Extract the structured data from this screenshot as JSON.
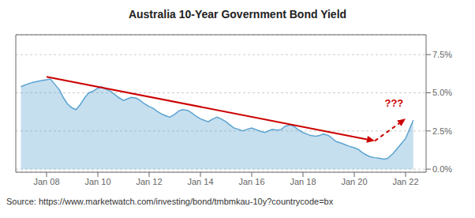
{
  "chart_data": {
    "type": "area",
    "title": "Australia 10-Year Government Bond Yield",
    "source": "Source: https://www.marketwatch.com/investing/bond/tmbmkau-10y?countrycode=bx",
    "color": "#5ba3d0",
    "grid": true,
    "xlim": [
      -0.2,
      15.8
    ],
    "xticks": [
      {
        "value": 1,
        "label": "Jan 08"
      },
      {
        "value": 3,
        "label": "Jan 10"
      },
      {
        "value": 5,
        "label": "Jan 12"
      },
      {
        "value": 7,
        "label": "Jan 14"
      },
      {
        "value": 9,
        "label": "Jan 16"
      },
      {
        "value": 11,
        "label": "Jan 18"
      },
      {
        "value": 13,
        "label": "Jan 20"
      },
      {
        "value": 15,
        "label": "Jan 22"
      }
    ],
    "ylim": [
      -0.2,
      8.8
    ],
    "yticks": [
      {
        "value": 0.0,
        "label": "0.0%"
      },
      {
        "value": 2.5,
        "label": "2.5%"
      },
      {
        "value": 5.0,
        "label": "5.0%"
      },
      {
        "value": 7.5,
        "label": "7.5%"
      }
    ],
    "x": [
      0.0,
      0.15,
      0.3,
      0.5,
      0.65,
      0.8,
      1.0,
      1.15,
      1.3,
      1.5,
      1.65,
      1.8,
      2.0,
      2.15,
      2.3,
      2.5,
      2.65,
      2.8,
      3.0,
      3.15,
      3.3,
      3.5,
      3.65,
      3.8,
      4.0,
      4.15,
      4.3,
      4.5,
      4.65,
      4.8,
      5.0,
      5.15,
      5.3,
      5.5,
      5.65,
      5.8,
      6.0,
      6.15,
      6.3,
      6.5,
      6.65,
      6.8,
      7.0,
      7.15,
      7.3,
      7.5,
      7.65,
      7.8,
      8.0,
      8.15,
      8.3,
      8.5,
      8.65,
      8.8,
      9.0,
      9.15,
      9.3,
      9.5,
      9.65,
      9.8,
      10.0,
      10.15,
      10.3,
      10.5,
      10.65,
      10.8,
      11.0,
      11.15,
      11.3,
      11.5,
      11.65,
      11.8,
      12.0,
      12.15,
      12.3,
      12.5,
      12.65,
      12.8,
      13.0,
      13.15,
      13.3,
      13.5,
      13.65,
      13.8,
      14.0,
      14.15,
      14.3,
      14.5,
      14.65,
      14.8,
      15.0,
      15.15,
      15.3
    ],
    "values": [
      5.4,
      5.5,
      5.6,
      5.7,
      5.75,
      5.8,
      5.85,
      5.9,
      5.6,
      5.2,
      4.7,
      4.3,
      4.0,
      3.9,
      4.2,
      4.7,
      5.0,
      5.1,
      5.3,
      5.4,
      5.25,
      5.1,
      4.9,
      4.7,
      4.5,
      4.6,
      4.7,
      4.65,
      4.5,
      4.3,
      4.1,
      4.0,
      3.8,
      3.6,
      3.5,
      3.4,
      3.6,
      3.8,
      3.9,
      3.85,
      3.7,
      3.5,
      3.3,
      3.2,
      3.1,
      3.3,
      3.4,
      3.3,
      3.1,
      2.9,
      2.7,
      2.6,
      2.5,
      2.6,
      2.7,
      2.6,
      2.5,
      2.4,
      2.5,
      2.6,
      2.55,
      2.6,
      2.8,
      2.9,
      2.8,
      2.6,
      2.4,
      2.3,
      2.2,
      2.15,
      2.2,
      2.3,
      2.2,
      2.0,
      1.8,
      1.7,
      1.6,
      1.5,
      1.4,
      1.3,
      1.1,
      0.9,
      0.8,
      0.75,
      0.7,
      0.65,
      0.7,
      1.0,
      1.3,
      1.6,
      2.0,
      2.6,
      3.2
    ],
    "annotations": [
      {
        "type": "line",
        "x": [
          1.0,
          13.8
        ],
        "y": [
          6.05,
          1.85
        ],
        "color": "#cc0000",
        "line_style": "solid",
        "marker": "arrow"
      },
      {
        "type": "line",
        "x": [
          13.8,
          15.0
        ],
        "y": [
          1.85,
          3.3
        ],
        "color": "#cc0000",
        "line_style": "dashed",
        "marker": "arrow"
      },
      {
        "type": "text",
        "text": "???",
        "x": 14.55,
        "y": 3.85,
        "color": "#cc0000"
      }
    ]
  }
}
